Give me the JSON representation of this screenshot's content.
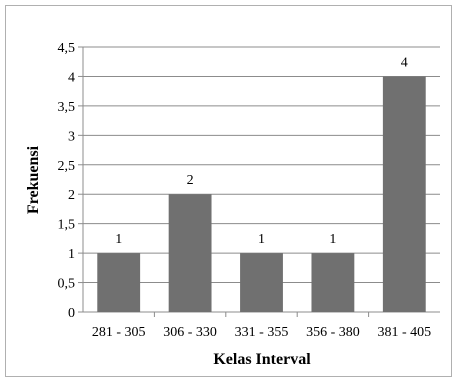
{
  "chart_data": {
    "type": "bar",
    "title": "",
    "xlabel": "Kelas Interval",
    "ylabel": "Frekuensi",
    "categories": [
      "281 - 305",
      "306 - 330",
      "331 - 355",
      "356 - 380",
      "381 - 405"
    ],
    "values": [
      1,
      2,
      1,
      1,
      4
    ],
    "data_labels": [
      "1",
      "2",
      "1",
      "1",
      "4"
    ],
    "ylim": [
      0,
      4.5
    ],
    "yticks": [
      "0",
      "0,5",
      "1",
      "1,5",
      "2",
      "2,5",
      "3",
      "3,5",
      "4",
      "4,5"
    ],
    "grid": true,
    "legend": "none",
    "colors": {
      "bar": "#707070",
      "grid": "#8c8c8c",
      "axis": "#8c8c8c",
      "frame": "#b0b0b0"
    }
  }
}
